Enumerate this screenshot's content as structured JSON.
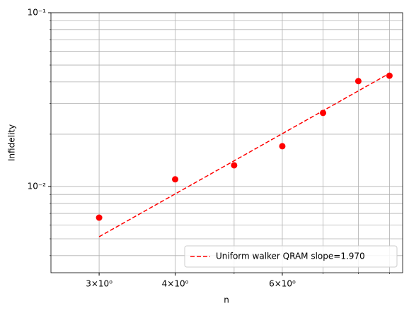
{
  "chart_data": {
    "type": "scatter",
    "xlabel": "n",
    "ylabel": "Infidelity",
    "xscale": "log",
    "yscale": "log",
    "x": [
      3,
      4,
      5,
      6,
      7,
      8,
      9
    ],
    "series": [
      {
        "style": "markers",
        "color": "#ff0000",
        "values": [
          0.00662,
          0.011,
          0.01324,
          0.01706,
          0.0265,
          0.0404,
          0.0434
        ]
      },
      {
        "name": "Uniform walker QRAM slope=1.970",
        "style": "dashed",
        "color": "#ff0000",
        "values": [
          0.00514,
          0.00906,
          0.01406,
          0.02014,
          0.02728,
          0.03549,
          0.04477
        ]
      }
    ],
    "xlim": [
      2.5,
      9.46
    ],
    "ylim": [
      0.00319,
      0.1
    ],
    "xticks": [
      {
        "value": 3,
        "label": "3×10⁰"
      },
      {
        "value": 4,
        "label": "4×10⁰"
      },
      {
        "value": 6,
        "label": "6×10⁰"
      }
    ],
    "xminor_ticks": [
      5,
      7,
      8,
      9
    ],
    "yticks": [
      {
        "value": 0.01,
        "label": "10⁻²"
      },
      {
        "value": 0.1,
        "label": "10⁻¹"
      }
    ],
    "yminor_ticks": [
      0.004,
      0.005,
      0.006,
      0.007,
      0.008,
      0.009,
      0.02,
      0.03,
      0.04,
      0.05,
      0.06,
      0.07,
      0.08,
      0.09
    ],
    "grid": true,
    "legend": "lower right"
  }
}
